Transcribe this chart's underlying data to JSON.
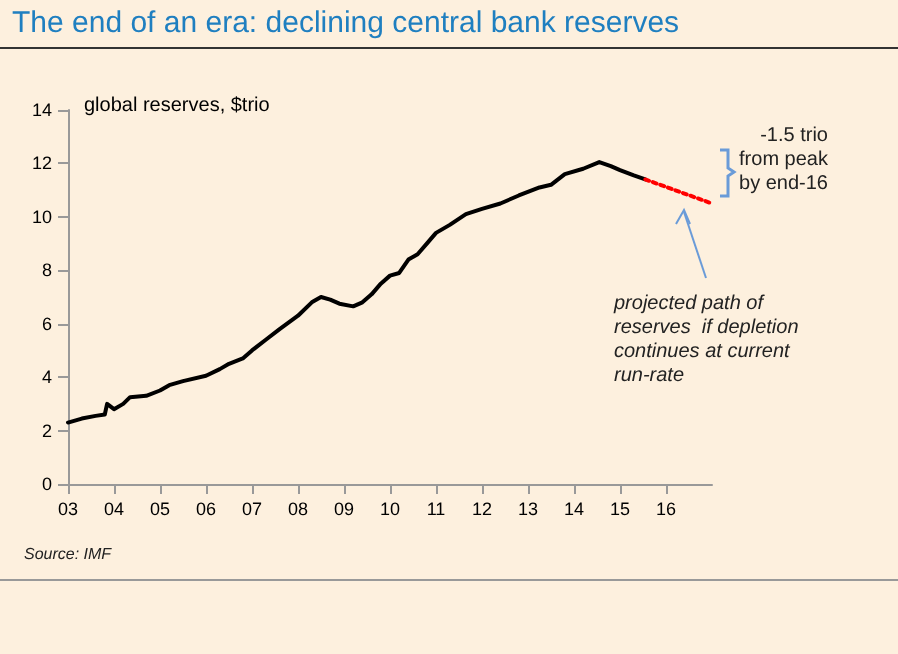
{
  "chart_data": {
    "type": "line",
    "title": "The end of an era: declining central bank reserves",
    "ylabel": "global reserves, $trio",
    "annotations": [
      "-1.5 trio\nfrom peak\nby end-16",
      "projected path of\nreserves  if depletion\ncontinues at current\nrun-rate",
      "Source: IMF"
    ],
    "series": [
      {
        "color": "#000000",
        "line_style": "solid",
        "x": [
          2003.0,
          2003.3,
          2003.6,
          2003.8,
          2003.85,
          2004.0,
          2004.2,
          2004.35,
          2004.7,
          2005.0,
          2005.2,
          2005.5,
          2006.0,
          2006.3,
          2006.5,
          2006.8,
          2007.0,
          2007.3,
          2007.6,
          2008.0,
          2008.3,
          2008.5,
          2008.7,
          2008.9,
          2009.2,
          2009.4,
          2009.6,
          2009.8,
          2010.0,
          2010.2,
          2010.4,
          2010.6,
          2010.8,
          2011.0,
          2011.3,
          2011.65,
          2012.0,
          2012.4,
          2012.8,
          2013.25,
          2013.5,
          2013.8,
          2014.2,
          2014.55,
          2014.8,
          2015.0,
          2015.3,
          2015.55
        ],
        "values": [
          2.3,
          2.45,
          2.55,
          2.6,
          3.0,
          2.8,
          3.0,
          3.25,
          3.3,
          3.5,
          3.7,
          3.85,
          4.05,
          4.3,
          4.5,
          4.7,
          5.0,
          5.4,
          5.8,
          6.3,
          6.8,
          7.0,
          6.9,
          6.75,
          6.65,
          6.8,
          7.1,
          7.5,
          7.8,
          7.9,
          8.4,
          8.6,
          9.0,
          9.4,
          9.7,
          10.1,
          10.3,
          10.5,
          10.8,
          11.1,
          11.2,
          11.6,
          11.8,
          12.05,
          11.9,
          11.75,
          11.55,
          11.4
        ]
      },
      {
        "color": "#ff0000",
        "line_style": "dotted",
        "x": [
          2015.55,
          2017.0
        ],
        "values": [
          11.4,
          10.5
        ]
      }
    ],
    "xlim": [
      2003,
      2017
    ],
    "xticks": [
      {
        "value": 2003,
        "label": "03"
      },
      {
        "value": 2004,
        "label": "04"
      },
      {
        "value": 2005,
        "label": "05"
      },
      {
        "value": 2006,
        "label": "06"
      },
      {
        "value": 2007,
        "label": "07"
      },
      {
        "value": 2008,
        "label": "08"
      },
      {
        "value": 2009,
        "label": "09"
      },
      {
        "value": 2010,
        "label": "10"
      },
      {
        "value": 2011,
        "label": "11"
      },
      {
        "value": 2012,
        "label": "12"
      },
      {
        "value": 2013,
        "label": "13"
      },
      {
        "value": 2014,
        "label": "14"
      },
      {
        "value": 2015,
        "label": "15"
      },
      {
        "value": 2016,
        "label": "16"
      }
    ],
    "ylim": [
      0,
      14
    ],
    "yticks": [
      0,
      2,
      4,
      6,
      8,
      10,
      12,
      14
    ],
    "grid": false,
    "marker": "none"
  }
}
